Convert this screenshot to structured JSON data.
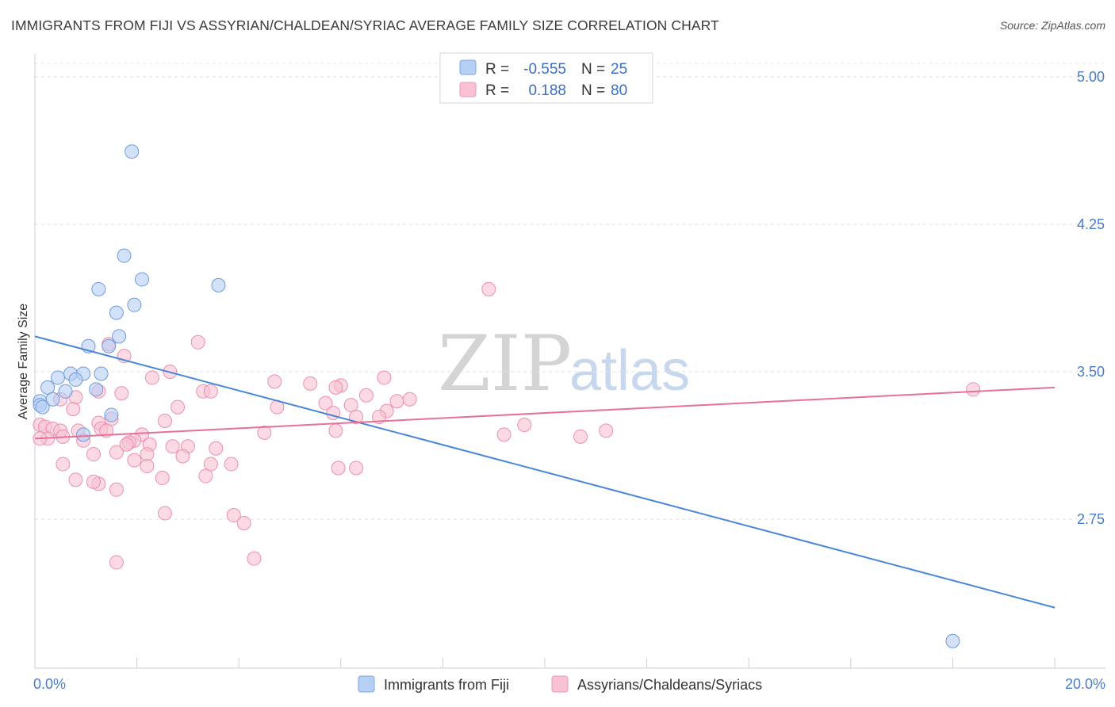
{
  "header": {
    "title": "IMMIGRANTS FROM FIJI VS ASSYRIAN/CHALDEAN/SYRIAC AVERAGE FAMILY SIZE CORRELATION CHART",
    "source": "Source: ZipAtlas.com"
  },
  "watermark": {
    "zip": "ZIP",
    "atlas": "atlas"
  },
  "legend": {
    "r_label": "R =",
    "n_label": "N =",
    "series": [
      {
        "name": "Immigrants from Fiji",
        "r": "-0.555",
        "n": "25",
        "fill": "#b5cff5",
        "stroke": "#7ea6e0"
      },
      {
        "name": "Assyrians/Chaldeans/Syriacs",
        "r": "0.188",
        "n": "80",
        "fill": "#f8c2d2",
        "stroke": "#ee97b3"
      }
    ]
  },
  "chart_data": {
    "type": "scatter",
    "title": "IMMIGRANTS FROM FIJI VS ASSYRIAN/CHALDEAN/SYRIAC AVERAGE FAMILY SIZE CORRELATION CHART",
    "xlabel": "",
    "ylabel": "Average Family Size",
    "xlim": [
      0,
      20
    ],
    "ylim": [
      2.08,
      5.1
    ],
    "x_tick_labels": [
      "0.0%",
      "20.0%"
    ],
    "y_ticks": [
      {
        "value": 5.0,
        "label": "5.00"
      },
      {
        "value": 4.25,
        "label": "4.25"
      },
      {
        "value": 3.5,
        "label": "3.50"
      },
      {
        "value": 2.75,
        "label": "2.75"
      }
    ],
    "grid": "horizontal dashed",
    "series": [
      {
        "name": "Immigrants from Fiji",
        "color": "#4a86d8",
        "points": [
          [
            1.9,
            4.62
          ],
          [
            1.75,
            4.09
          ],
          [
            1.25,
            3.92
          ],
          [
            2.1,
            3.97
          ],
          [
            3.6,
            3.94
          ],
          [
            1.6,
            3.8
          ],
          [
            1.95,
            3.84
          ],
          [
            1.65,
            3.68
          ],
          [
            1.05,
            3.63
          ],
          [
            1.45,
            3.63
          ],
          [
            0.45,
            3.47
          ],
          [
            0.7,
            3.49
          ],
          [
            0.95,
            3.49
          ],
          [
            1.3,
            3.49
          ],
          [
            0.8,
            3.46
          ],
          [
            0.25,
            3.42
          ],
          [
            0.6,
            3.4
          ],
          [
            1.2,
            3.41
          ],
          [
            0.35,
            3.36
          ],
          [
            0.1,
            3.35
          ],
          [
            0.1,
            3.33
          ],
          [
            0.15,
            3.32
          ],
          [
            1.5,
            3.28
          ],
          [
            0.95,
            3.18
          ],
          [
            18.0,
            2.13
          ]
        ],
        "trend": {
          "x": [
            0,
            20
          ],
          "y": [
            3.68,
            2.3
          ]
        }
      },
      {
        "name": "Assyrians/Chaldeans/Syriacs",
        "color": "#e6709a",
        "points": [
          [
            8.9,
            3.92
          ],
          [
            3.2,
            3.65
          ],
          [
            1.45,
            3.64
          ],
          [
            1.75,
            3.58
          ],
          [
            2.65,
            3.5
          ],
          [
            2.3,
            3.47
          ],
          [
            4.7,
            3.45
          ],
          [
            5.4,
            3.44
          ],
          [
            6.0,
            3.43
          ],
          [
            5.9,
            3.42
          ],
          [
            3.3,
            3.4
          ],
          [
            6.5,
            3.38
          ],
          [
            1.7,
            3.39
          ],
          [
            1.25,
            3.4
          ],
          [
            0.8,
            3.37
          ],
          [
            0.5,
            3.36
          ],
          [
            7.1,
            3.35
          ],
          [
            5.7,
            3.34
          ],
          [
            6.2,
            3.33
          ],
          [
            2.8,
            3.32
          ],
          [
            4.75,
            3.32
          ],
          [
            0.75,
            3.31
          ],
          [
            6.9,
            3.3
          ],
          [
            5.85,
            3.29
          ],
          [
            6.3,
            3.27
          ],
          [
            6.75,
            3.27
          ],
          [
            1.5,
            3.26
          ],
          [
            2.55,
            3.25
          ],
          [
            1.25,
            3.24
          ],
          [
            9.6,
            3.23
          ],
          [
            0.1,
            3.23
          ],
          [
            0.2,
            3.22
          ],
          [
            0.35,
            3.21
          ],
          [
            0.5,
            3.2
          ],
          [
            0.85,
            3.2
          ],
          [
            1.3,
            3.21
          ],
          [
            1.4,
            3.2
          ],
          [
            5.9,
            3.2
          ],
          [
            11.2,
            3.2
          ],
          [
            4.5,
            3.19
          ],
          [
            9.2,
            3.18
          ],
          [
            2.1,
            3.18
          ],
          [
            10.7,
            3.17
          ],
          [
            0.25,
            3.16
          ],
          [
            0.1,
            3.16
          ],
          [
            0.55,
            3.17
          ],
          [
            0.95,
            3.15
          ],
          [
            1.95,
            3.15
          ],
          [
            1.85,
            3.14
          ],
          [
            1.8,
            3.13
          ],
          [
            2.25,
            3.13
          ],
          [
            2.7,
            3.12
          ],
          [
            3.0,
            3.12
          ],
          [
            3.55,
            3.11
          ],
          [
            1.6,
            3.09
          ],
          [
            1.15,
            3.08
          ],
          [
            2.2,
            3.08
          ],
          [
            2.9,
            3.07
          ],
          [
            0.55,
            3.03
          ],
          [
            1.95,
            3.05
          ],
          [
            2.2,
            3.02
          ],
          [
            3.45,
            3.03
          ],
          [
            3.85,
            3.03
          ],
          [
            5.95,
            3.01
          ],
          [
            6.3,
            3.01
          ],
          [
            3.35,
            2.97
          ],
          [
            2.5,
            2.96
          ],
          [
            0.8,
            2.95
          ],
          [
            1.25,
            2.93
          ],
          [
            1.15,
            2.94
          ],
          [
            1.6,
            2.9
          ],
          [
            2.55,
            2.78
          ],
          [
            3.9,
            2.77
          ],
          [
            4.1,
            2.73
          ],
          [
            1.6,
            2.53
          ],
          [
            4.3,
            2.55
          ],
          [
            18.4,
            3.41
          ],
          [
            6.85,
            3.47
          ],
          [
            7.35,
            3.36
          ],
          [
            3.45,
            3.4
          ]
        ],
        "trend": {
          "x": [
            0,
            20
          ],
          "y": [
            3.16,
            3.42
          ]
        }
      }
    ]
  }
}
